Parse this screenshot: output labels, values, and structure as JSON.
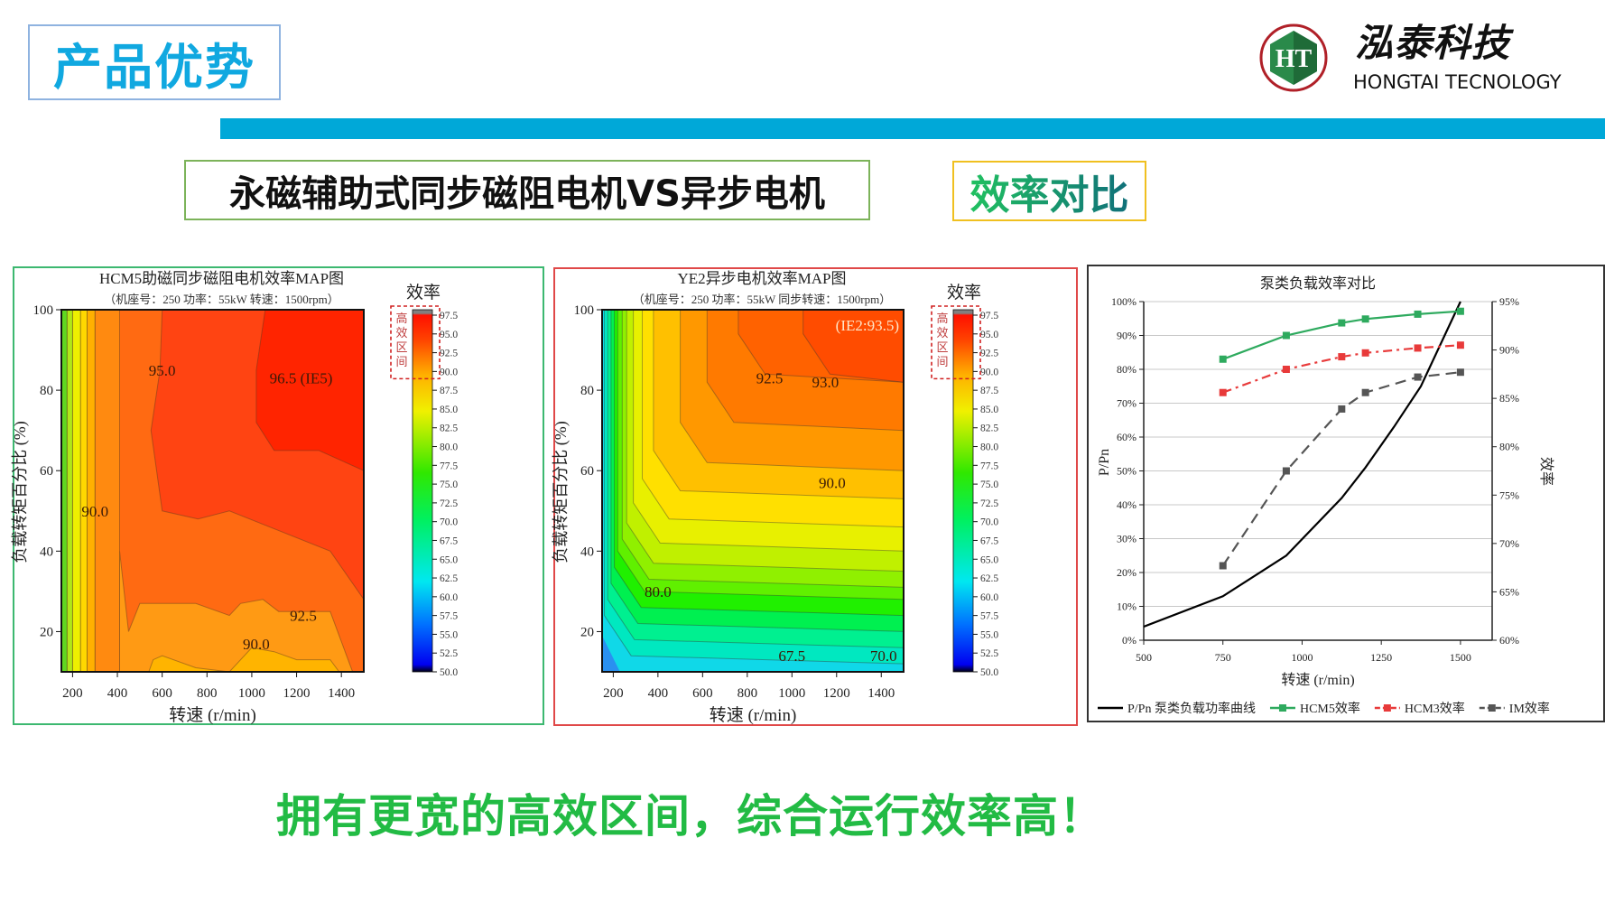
{
  "header": {
    "title": "产品优势"
  },
  "logo": {
    "cn": "泓泰科技",
    "en": "HONGTAI TECNOLOGY",
    "mark": "HT"
  },
  "subtitle": {
    "left": "永磁辅助式同步磁阻电机VS异步电机",
    "right": "效率对比"
  },
  "footer": {
    "slogan": "拥有更宽的高效区间，综合运行效率高！"
  },
  "colors": {
    "accent_blue": "#00a8d8",
    "title_blue": "#10a8e0",
    "slogan_green": "#22bb44"
  },
  "chart_data": [
    {
      "type": "heatmap",
      "title": "HCM5助磁同步磁阻电机效率MAP图",
      "subtitle": "（机座号：250   功率：55kW   转速：1500rpm）",
      "xlabel": "转速 (r/min)",
      "ylabel": "负载转矩百分比 (%)",
      "xlim": [
        150,
        1500
      ],
      "ylim": [
        10,
        100
      ],
      "xticks": [
        "200",
        "400",
        "600",
        "800",
        "1000",
        "1200",
        "1400"
      ],
      "yticks": [
        "20",
        "40",
        "60",
        "80",
        "100"
      ],
      "colorbar": {
        "title": "效率",
        "ticks": [
          "50.0",
          "52.5",
          "55.0",
          "57.5",
          "60.0",
          "62.5",
          "65.0",
          "67.5",
          "70.0",
          "72.5",
          "75.0",
          "77.5",
          "80.0",
          "82.5",
          "85.0",
          "87.5",
          "90.0",
          "92.5",
          "95.0",
          "97.5"
        ],
        "range": [
          50,
          97.5
        ],
        "high_zone_label": "高效区间",
        "high_zone_from": 90
      },
      "base_color": "#ff6a12",
      "regions": [
        {
          "level": 90.0,
          "color": "#ff9a14",
          "points": [
            [
              410,
              10
            ],
            [
              410,
              40
            ],
            [
              450,
              20
            ],
            [
              500,
              27
            ],
            [
              750,
              27
            ],
            [
              900,
              24
            ],
            [
              950,
              27
            ],
            [
              1050,
              28
            ],
            [
              1120,
              25
            ],
            [
              1350,
              25
            ],
            [
              1450,
              10
            ]
          ]
        },
        {
          "level": 88.0,
          "color": "#ffb400",
          "points": [
            [
              540,
              10
            ],
            [
              560,
              13
            ],
            [
              600,
              14
            ],
            [
              750,
              11
            ],
            [
              900,
              10
            ]
          ]
        },
        {
          "level": 88.0,
          "color": "#ffb400",
          "points": [
            [
              900,
              10
            ],
            [
              1000,
              16
            ],
            [
              1100,
              15
            ],
            [
              1200,
              13
            ],
            [
              1350,
              13
            ],
            [
              1390,
              10
            ]
          ]
        },
        {
          "level": 95.0,
          "color": "#ff4412",
          "points": [
            [
              600,
              100
            ],
            [
              590,
              85
            ],
            [
              550,
              70
            ],
            [
              600,
              50
            ],
            [
              760,
              48
            ],
            [
              900,
              50
            ],
            [
              1350,
              40
            ],
            [
              1500,
              28
            ],
            [
              1500,
              100
            ]
          ]
        },
        {
          "level": 96.5,
          "color": "#ff2400",
          "points": [
            [
              1060,
              100
            ],
            [
              1020,
              85
            ],
            [
              1020,
              72
            ],
            [
              1100,
              65
            ],
            [
              1300,
              65
            ],
            [
              1500,
              60
            ],
            [
              1500,
              100
            ]
          ]
        },
        {
          "level": 92.5,
          "color": "#ff8a10",
          "points": [
            [
              300,
              10
            ],
            [
              300,
              100
            ],
            [
              410,
              100
            ],
            [
              410,
              10
            ]
          ]
        },
        {
          "level": 87.5,
          "color": "#ffb000",
          "points": [
            [
              265,
              10
            ],
            [
              265,
              100
            ],
            [
              300,
              100
            ],
            [
              300,
              10
            ]
          ]
        },
        {
          "level": 85.0,
          "color": "#ffd800",
          "points": [
            [
              235,
              10
            ],
            [
              235,
              100
            ],
            [
              265,
              100
            ],
            [
              265,
              10
            ]
          ]
        },
        {
          "level": 82.5,
          "color": "#eef000",
          "points": [
            [
              200,
              10
            ],
            [
              200,
              100
            ],
            [
              235,
              100
            ],
            [
              235,
              10
            ]
          ]
        },
        {
          "level": 80.0,
          "color": "#b0e818",
          "points": [
            [
              175,
              10
            ],
            [
              175,
              100
            ],
            [
              200,
              100
            ],
            [
              200,
              10
            ]
          ]
        },
        {
          "level": 77.5,
          "color": "#60d820",
          "points": [
            [
              150,
              10
            ],
            [
              150,
              100
            ],
            [
              175,
              100
            ],
            [
              175,
              10
            ]
          ]
        }
      ],
      "contour_labels": [
        {
          "text": "95.0",
          "x": 600,
          "y": 85
        },
        {
          "text": "96.5 (IE5)",
          "x": 1220,
          "y": 83
        },
        {
          "text": "90.0",
          "x": 300,
          "y": 50
        },
        {
          "text": "92.5",
          "x": 1230,
          "y": 24
        },
        {
          "text": "90.0",
          "x": 1020,
          "y": 17
        }
      ]
    },
    {
      "type": "heatmap",
      "title": "YE2异步电机效率MAP图",
      "subtitle": "（机座号：250   功率：55kW   同步转速：1500rpm）",
      "xlabel": "转速 (r/min)",
      "ylabel": "负载转矩百分比 (%)",
      "xlim": [
        150,
        1500
      ],
      "ylim": [
        10,
        100
      ],
      "xticks": [
        "200",
        "400",
        "600",
        "800",
        "1000",
        "1200",
        "1400"
      ],
      "yticks": [
        "20",
        "40",
        "60",
        "80",
        "100"
      ],
      "colorbar": {
        "title": "效率",
        "ticks": [
          "50.0",
          "52.5",
          "55.0",
          "57.5",
          "60.0",
          "62.5",
          "65.0",
          "67.5",
          "70.0",
          "72.5",
          "75.0",
          "77.5",
          "80.0",
          "82.5",
          "85.0",
          "87.5",
          "90.0",
          "92.5",
          "95.0",
          "97.5"
        ],
        "range": [
          50,
          97.5
        ],
        "high_zone_label": "高效区间",
        "high_zone_from": 90
      },
      "base_color": "#10d8e8",
      "corner_regions": [
        {
          "level": 65.0,
          "color": "#00e8c0",
          "corner": [
            160,
            12
          ]
        },
        {
          "level": 67.5,
          "color": "#00f090",
          "corner": [
            175,
            16
          ]
        },
        {
          "level": 70.0,
          "color": "#00f050",
          "corner": [
            190,
            20
          ]
        },
        {
          "level": 72.5,
          "color": "#20f000",
          "corner": [
            205,
            24
          ]
        },
        {
          "level": 75.0,
          "color": "#60f000",
          "corner": [
            220,
            28
          ]
        },
        {
          "level": 77.5,
          "color": "#90f000",
          "corner": [
            240,
            31
          ]
        },
        {
          "level": 80.0,
          "color": "#c0f000",
          "corner": [
            260,
            35
          ]
        },
        {
          "level": 82.5,
          "color": "#e8f000",
          "corner": [
            290,
            40
          ]
        },
        {
          "level": 85.0,
          "color": "#ffe000",
          "corner": [
            330,
            46
          ]
        },
        {
          "level": 87.5,
          "color": "#ffc000",
          "corner": [
            380,
            53
          ]
        },
        {
          "level": 90.0,
          "color": "#ff9800",
          "corner": [
            500,
            60
          ]
        },
        {
          "level": 91.5,
          "color": "#ff7a00",
          "corner": [
            620,
            70
          ]
        },
        {
          "level": 92.5,
          "color": "#ff6200",
          "corner": [
            760,
            82
          ]
        },
        {
          "level": 93.0,
          "color": "#ff4c00",
          "corner": [
            1050,
            82
          ]
        }
      ],
      "low_corner": {
        "level": 60.0,
        "color": "#2a90f0",
        "points": [
          [
            150,
            10
          ],
          [
            150,
            19
          ],
          [
            230,
            10
          ]
        ]
      },
      "contour_labels": [
        {
          "text": "92.5",
          "x": 900,
          "y": 83
        },
        {
          "text": "93.0",
          "x": 1150,
          "y": 82
        },
        {
          "text": "90.0",
          "x": 1180,
          "y": 57
        },
        {
          "text": "80.0",
          "x": 400,
          "y": 30
        },
        {
          "text": "67.5",
          "x": 1000,
          "y": 14
        },
        {
          "text": "70.0",
          "x": 1410,
          "y": 14
        }
      ],
      "annotation": "(IE2:93.5)"
    },
    {
      "type": "line",
      "title": "泵类负载效率对比",
      "xlabel": "转速 (r/min)",
      "ylabel_left": "P/Pn",
      "ylabel_right": "效率",
      "xlim": [
        500,
        1600
      ],
      "ylim_left": [
        0,
        100
      ],
      "ylim_right": [
        60,
        95
      ],
      "xticks": [
        500,
        750,
        1000,
        1250,
        1500
      ],
      "yticks_left": [
        "0%",
        "10%",
        "20%",
        "30%",
        "40%",
        "50%",
        "60%",
        "70%",
        "80%",
        "90%",
        "100%"
      ],
      "yticks_right": [
        "60%",
        "65%",
        "70%",
        "75%",
        "80%",
        "85%",
        "90%",
        "95%"
      ],
      "grid": true,
      "legend_position": "bottom",
      "series": [
        {
          "name": "P/Pn 泵类负载功率曲线",
          "axis": "left",
          "color": "#000000",
          "dash": "",
          "marker": false,
          "x": [
            500,
            750,
            950,
            1125,
            1200,
            1290,
            1375,
            1500
          ],
          "y": [
            4,
            13,
            25,
            42,
            51,
            63,
            75,
            100
          ]
        },
        {
          "name": "HCM5效率",
          "axis": "right",
          "color": "#2eaa5e",
          "dash": "",
          "marker": true,
          "x": [
            750,
            950,
            1125,
            1200,
            1365,
            1500
          ],
          "y": [
            89.05,
            91.5,
            92.8,
            93.2,
            93.7,
            94.0
          ]
        },
        {
          "name": "HCM3效率",
          "axis": "right",
          "color": "#e83a3a",
          "dash": "10 5 3 5",
          "marker": true,
          "x": [
            750,
            950,
            1125,
            1200,
            1365,
            1500
          ],
          "y": [
            85.6,
            88.0,
            89.3,
            89.7,
            90.2,
            90.5
          ]
        },
        {
          "name": "IM效率",
          "axis": "right",
          "color": "#555555",
          "dash": "12 7",
          "marker": true,
          "x": [
            750,
            950,
            1125,
            1200,
            1365,
            1500
          ],
          "y": [
            67.7,
            77.5,
            83.9,
            85.6,
            87.2,
            87.7
          ]
        }
      ]
    }
  ]
}
